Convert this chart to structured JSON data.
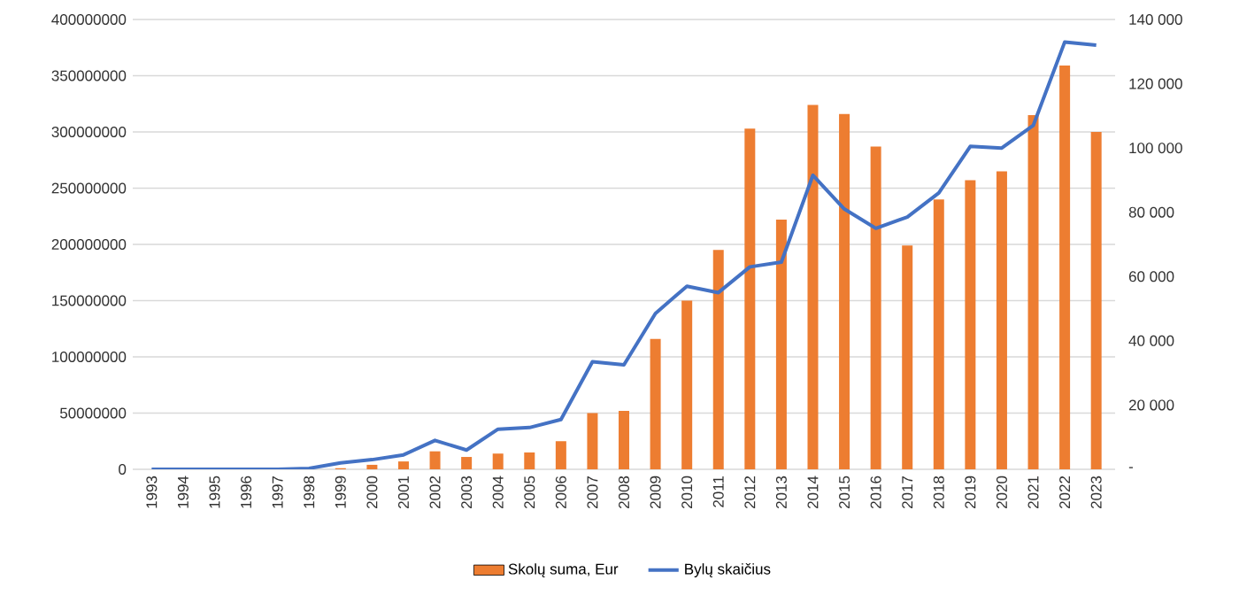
{
  "chart_data": {
    "type": "bar",
    "categories": [
      "1993",
      "1994",
      "1995",
      "1996",
      "1997",
      "1998",
      "1999",
      "2000",
      "2001",
      "2002",
      "2003",
      "2004",
      "2005",
      "2006",
      "2007",
      "2008",
      "2009",
      "2010",
      "2011",
      "2012",
      "2013",
      "2014",
      "2015",
      "2016",
      "2017",
      "2018",
      "2019",
      "2020",
      "2021",
      "2022",
      "2023"
    ],
    "series": [
      {
        "name": "Skolų suma, Eur",
        "color": "#ed7d31",
        "values": [
          0,
          0,
          0,
          0,
          0,
          0,
          1000000,
          4000000,
          7000000,
          16000000,
          11000000,
          14000000,
          15000000,
          25000000,
          50000000,
          52000000,
          116000000,
          150000000,
          195000000,
          303000000,
          222000000,
          324000000,
          316000000,
          287000000,
          199000000,
          240000000,
          257000000,
          265000000,
          315000000,
          359000000,
          300000000
        ]
      },
      {
        "name": "Bylų skaičius",
        "color": "#4472c4",
        "type": "line",
        "axis": "y2",
        "values": [
          0,
          0,
          0,
          0,
          0,
          300,
          2000,
          3000,
          4500,
          9000,
          6000,
          12500,
          13000,
          15500,
          33500,
          32500,
          48500,
          57000,
          55000,
          63000,
          64500,
          91500,
          81000,
          75000,
          78500,
          86000,
          100500,
          100000,
          107000,
          133000,
          132000
        ]
      }
    ],
    "ylim": [
      0,
      400000000
    ],
    "yticks": [
      0,
      50000000,
      100000000,
      150000000,
      200000000,
      250000000,
      300000000,
      350000000,
      400000000
    ],
    "y2lim": [
      0,
      140000
    ],
    "y2ticks": [
      {
        "value": 0,
        "label": "-"
      },
      {
        "value": 20000,
        "label": "20 000"
      },
      {
        "value": 40000,
        "label": "40 000"
      },
      {
        "value": 60000,
        "label": "60 000"
      },
      {
        "value": 80000,
        "label": "80 000"
      },
      {
        "value": 100000,
        "label": "100 000"
      },
      {
        "value": 120000,
        "label": "120 000"
      },
      {
        "value": 140000,
        "label": "140 000"
      }
    ],
    "grid": "y",
    "legend": "bottom"
  }
}
